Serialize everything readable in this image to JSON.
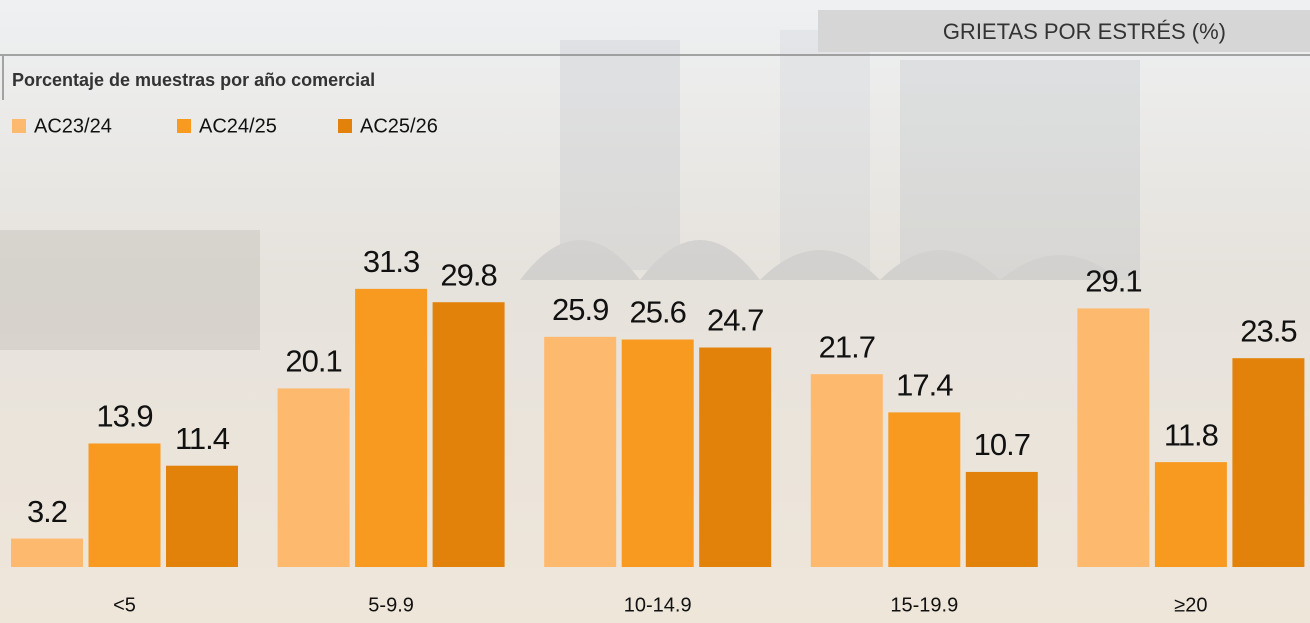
{
  "chart_data": {
    "type": "bar",
    "header": "GRIETAS POR ESTRÉS (%)",
    "title": "Porcentaje de muestras por año comercial",
    "categories": [
      "<5",
      "5-9.9",
      "10-14.9",
      "15-19.9",
      "≥20"
    ],
    "series": [
      {
        "name": "AC23/24",
        "color": "#fdba6e",
        "values": [
          3.2,
          20.1,
          25.9,
          21.7,
          29.1
        ]
      },
      {
        "name": "AC24/25",
        "color": "#f89a1f",
        "values": [
          13.9,
          31.3,
          25.6,
          17.4,
          11.8
        ]
      },
      {
        "name": "AC25/26",
        "color": "#e2820a",
        "values": [
          11.4,
          29.8,
          24.7,
          10.7,
          23.5
        ]
      }
    ],
    "ylim": [
      0,
      35
    ],
    "grid": false
  }
}
